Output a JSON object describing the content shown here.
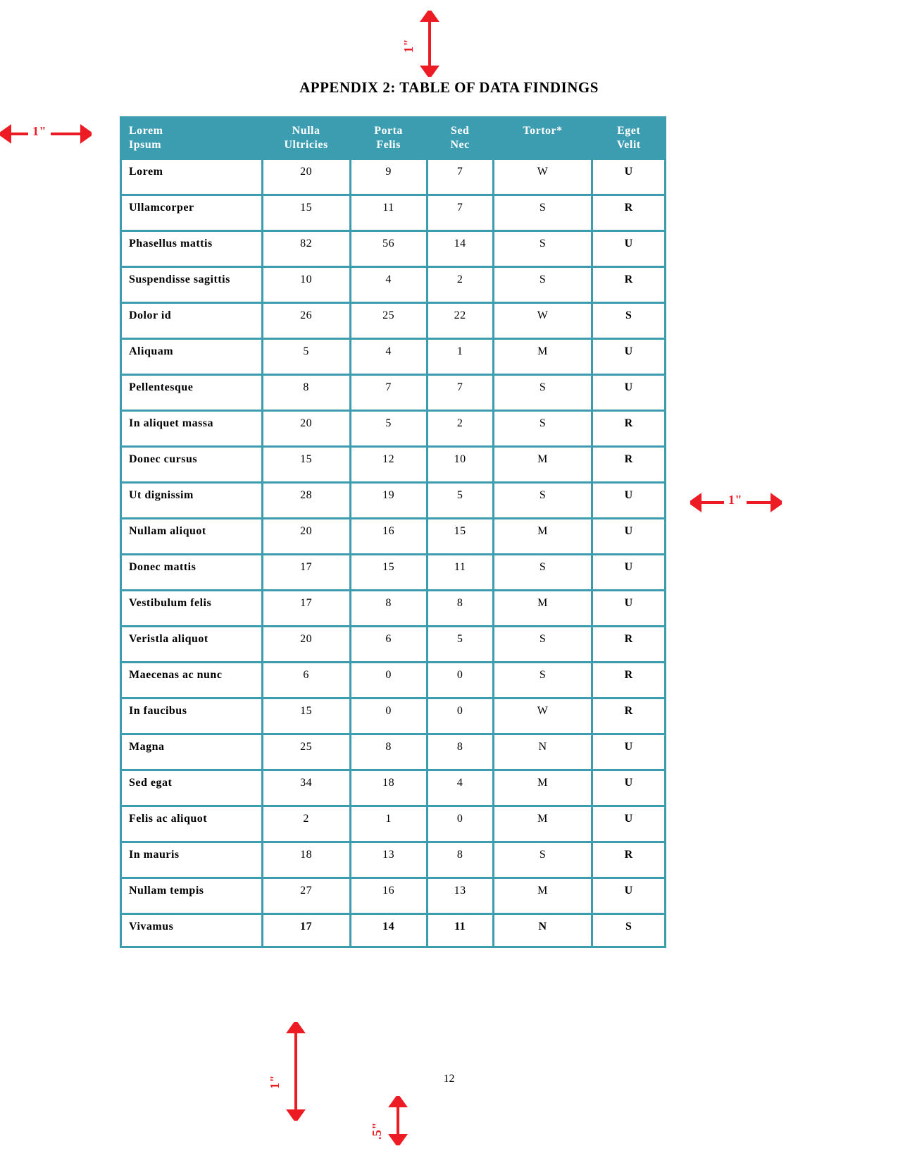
{
  "title": "APPENDIX 2: TABLE OF DATA FINDINGS",
  "page_number": "12",
  "colors": {
    "header_bg": "#3c9db1",
    "cell_border": "#3c9db1",
    "arrow": "#ed1c24"
  },
  "table": {
    "columns": [
      "Lorem Ipsum",
      "Nulla Ultricies",
      "Porta Felis",
      "Sed Nec",
      "Tortor*",
      "Eget Velit"
    ],
    "column_align": [
      "left",
      "center",
      "center",
      "center",
      "center",
      "center"
    ],
    "bold_columns": [
      0,
      5
    ],
    "rows": [
      [
        "Lorem",
        "20",
        "9",
        "7",
        "W",
        "U"
      ],
      [
        "Ullamcorper",
        "15",
        "11",
        "7",
        "S",
        "R"
      ],
      [
        "Phasellus mattis",
        "82",
        "56",
        "14",
        "S",
        "U"
      ],
      [
        "Suspendisse sagittis",
        "10",
        "4",
        "2",
        "S",
        "R"
      ],
      [
        "Dolor id",
        "26",
        "25",
        "22",
        "W",
        "S"
      ],
      [
        "Aliquam",
        "5",
        "4",
        "1",
        "M",
        "U"
      ],
      [
        "Pellentesque",
        "8",
        "7",
        "7",
        "S",
        "U"
      ],
      [
        "In aliquet massa",
        "20",
        "5",
        "2",
        "S",
        "R"
      ],
      [
        "Donec cursus",
        "15",
        "12",
        "10",
        "M",
        "R"
      ],
      [
        "Ut dignissim",
        "28",
        "19",
        "5",
        "S",
        "U"
      ],
      [
        "Nullam aliquot",
        "20",
        "16",
        "15",
        "M",
        "U"
      ],
      [
        "Donec mattis",
        "17",
        "15",
        "11",
        "S",
        "U"
      ],
      [
        "Vestibulum felis",
        "17",
        "8",
        "8",
        "M",
        "U"
      ],
      [
        "Veristla aliquot",
        "20",
        "6",
        "5",
        "S",
        "R"
      ],
      [
        "Maecenas ac nunc",
        "6",
        "0",
        "0",
        "S",
        "R"
      ],
      [
        "In faucibus",
        "15",
        "0",
        "0",
        "W",
        "R"
      ],
      [
        "Magna",
        "25",
        "8",
        "8",
        "N",
        "U"
      ],
      [
        "Sed egat",
        "34",
        "18",
        "4",
        "M",
        "U"
      ],
      [
        "Felis ac aliquot",
        "2",
        "1",
        "0",
        "M",
        "U"
      ],
      [
        "In mauris",
        "18",
        "13",
        "8",
        "S",
        "R"
      ],
      [
        "Nullam tempis",
        "27",
        "16",
        "13",
        "M",
        "U"
      ],
      [
        "Vivamus",
        "17",
        "14",
        "11",
        "N",
        "S"
      ]
    ],
    "last_row_all_bold": true
  },
  "margins": {
    "top": "1\"",
    "left": "1\"",
    "right": "1\"",
    "bottom_left": "1\"",
    "bottom_center": ".5\""
  }
}
